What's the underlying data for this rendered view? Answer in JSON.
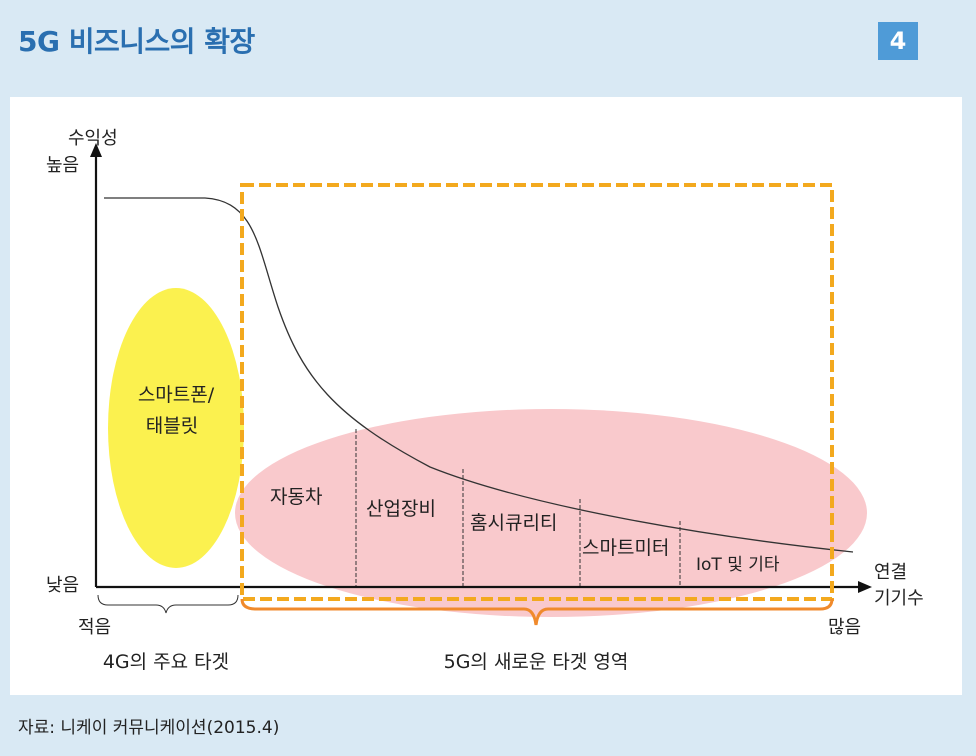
{
  "header": {
    "title": "5G 비즈니스의 확장",
    "page_number": "4"
  },
  "diagram": {
    "y_axis": {
      "label": "수익성",
      "high_label": "높음",
      "low_label": "낮음"
    },
    "x_axis": {
      "label_line1": "연결",
      "label_line2": "기기수",
      "low_label": "적음",
      "high_label": "많음"
    },
    "smartphone_region": {
      "label_line1": "스마트폰/",
      "label_line2": "태블릿",
      "color": "#fbf14f"
    },
    "new_target_region": {
      "color": "#f9c9cc",
      "segments": [
        "자동차",
        "산업장비",
        "홈시큐리티",
        "스마트미터",
        "IoT 및 기타"
      ]
    },
    "target_5g_box_color": "#f3a91e",
    "bracket_4g_label": "4G의 주요 타겟",
    "bracket_5g_label": "5G의 새로운 타겟 영역",
    "bracket_5g_color": "#f08a2c"
  },
  "footer": {
    "source": "자료: 니케이 커뮤니케이션(2015.4)"
  }
}
